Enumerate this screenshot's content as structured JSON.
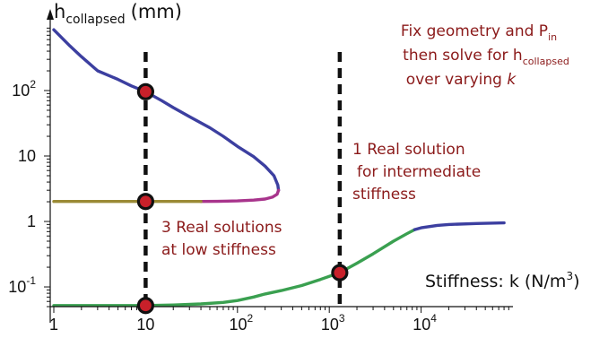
{
  "chart_data": {
    "type": "line",
    "x_scale": "log",
    "y_scale": "log",
    "xlim": [
      1,
      100000
    ],
    "ylim": [
      0.05,
      1000
    ],
    "x_ticks": [
      {
        "value": 1,
        "base": "1",
        "exp": ""
      },
      {
        "value": 10,
        "base": "10",
        "exp": ""
      },
      {
        "value": 100,
        "base": "10",
        "exp": "2"
      },
      {
        "value": 1000,
        "base": "10",
        "exp": "3"
      },
      {
        "value": 10000,
        "base": "10",
        "exp": "4"
      }
    ],
    "y_ticks": [
      {
        "value": 0.1,
        "base": "10",
        "exp": "-1"
      },
      {
        "value": 1,
        "base": "1",
        "exp": ""
      },
      {
        "value": 10,
        "base": "10",
        "exp": ""
      },
      {
        "value": 100,
        "base": "10",
        "exp": "2"
      }
    ],
    "y_title": {
      "main": "h",
      "sub": "collapsed",
      "unit": "(mm)"
    },
    "x_title": {
      "main": "Stiffness: k (N/m",
      "sup": "3",
      "close": ")"
    },
    "series": [
      {
        "color": "#3c3fa0",
        "points": [
          [
            1,
            850
          ],
          [
            1.5,
            480
          ],
          [
            2,
            330
          ],
          [
            3,
            200
          ],
          [
            5,
            148
          ],
          [
            7,
            118
          ],
          [
            10,
            96
          ],
          [
            15,
            70
          ],
          [
            20,
            55
          ],
          [
            30,
            40
          ],
          [
            50,
            27
          ],
          [
            70,
            20
          ],
          [
            100,
            14
          ],
          [
            150,
            9.8
          ],
          [
            200,
            7
          ],
          [
            250,
            5
          ],
          [
            275,
            3.6
          ],
          [
            280,
            3.0
          ]
        ]
      },
      {
        "color": "#a8348c",
        "points": [
          [
            280,
            3.0
          ],
          [
            270,
            2.6
          ],
          [
            240,
            2.35
          ],
          [
            200,
            2.2
          ],
          [
            150,
            2.12
          ],
          [
            100,
            2.06
          ],
          [
            60,
            2.03
          ],
          [
            40,
            2.02
          ]
        ]
      },
      {
        "color": "#9a8a35",
        "points": [
          [
            1,
            2.02
          ],
          [
            5,
            2.02
          ],
          [
            10,
            2.02
          ],
          [
            20,
            2.02
          ],
          [
            40,
            2.02
          ]
        ]
      },
      {
        "color": "#3aa050",
        "points": [
          [
            1,
            0.052
          ],
          [
            5,
            0.052
          ],
          [
            10,
            0.052
          ],
          [
            20,
            0.053
          ],
          [
            40,
            0.055
          ],
          [
            70,
            0.058
          ],
          [
            100,
            0.062
          ],
          [
            150,
            0.07
          ],
          [
            200,
            0.078
          ],
          [
            300,
            0.088
          ],
          [
            500,
            0.105
          ],
          [
            800,
            0.13
          ],
          [
            1300,
            0.165
          ],
          [
            2000,
            0.23
          ],
          [
            3000,
            0.32
          ],
          [
            5000,
            0.5
          ],
          [
            7000,
            0.65
          ],
          [
            8500,
            0.75
          ]
        ]
      },
      {
        "color": "#3c3fa0",
        "points": [
          [
            8500,
            0.75
          ],
          [
            10000,
            0.8
          ],
          [
            15000,
            0.87
          ],
          [
            20000,
            0.9
          ],
          [
            40000,
            0.93
          ],
          [
            80000,
            0.95
          ]
        ]
      }
    ],
    "markers": [
      {
        "x": 10,
        "y": 96
      },
      {
        "x": 10,
        "y": 2.02
      },
      {
        "x": 10,
        "y": 0.052
      },
      {
        "x": 1300,
        "y": 0.165
      }
    ],
    "dashed_lines": [
      10,
      1300
    ],
    "annotations": [
      {
        "lines": [
          [
            "Fix geometry and P",
            "in"
          ],
          [
            "then solve for h",
            "collapsed"
          ],
          [
            "over varying ",
            "k"
          ]
        ]
      },
      {
        "lines": [
          "1 Real solution",
          "for intermediate",
          "stiffness"
        ]
      },
      {
        "lines": [
          "3 Real solutions",
          "at low stiffness"
        ]
      }
    ]
  }
}
